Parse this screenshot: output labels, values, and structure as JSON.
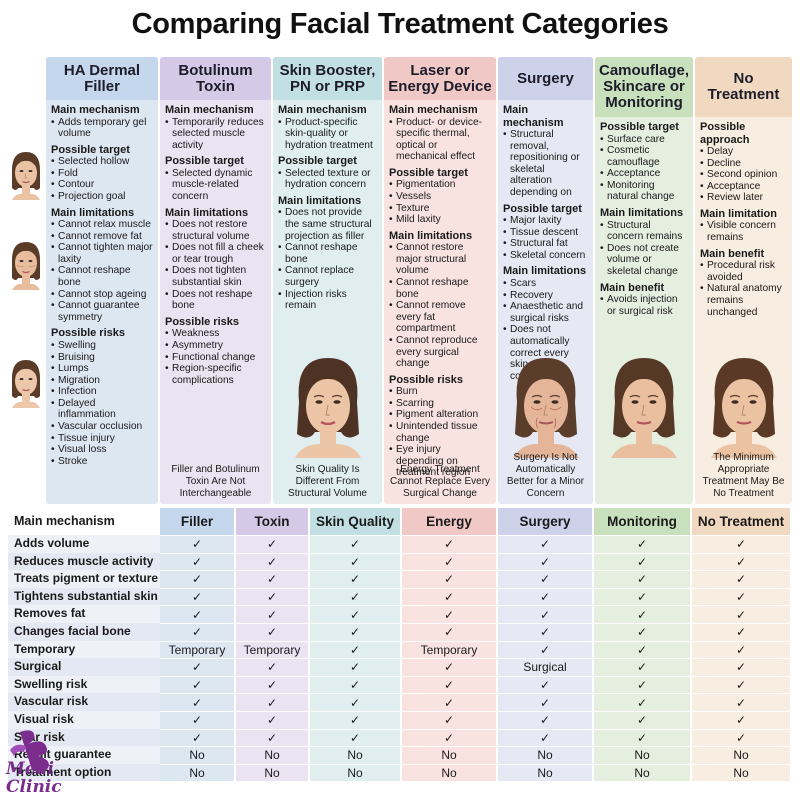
{
  "title": "Comparing Facial Treatment Categories",
  "colors": {
    "filler": "#dde7f2",
    "filler_head": "#c5d7ec",
    "toxin": "#e9e3f2",
    "toxin_head": "#d5c9e8",
    "booster": "#e0eef0",
    "booster_head": "#c2dfe3",
    "energy": "#f8e3e1",
    "energy_head": "#f0c9c6",
    "surgery": "#e6e8f3",
    "surgery_head": "#cdd2ea",
    "camo": "#e5efe0",
    "camo_head": "#c9e0bd",
    "none": "#f8ede1",
    "none_head": "#f0d9c0",
    "logo": "#7b2d8e"
  },
  "columns": [
    {
      "key": "filler",
      "header": "HA Dermal Filler",
      "sections": [
        {
          "title": "Main mechanism",
          "items": [
            "Adds temporary gel volume"
          ]
        },
        {
          "title": "Possible target",
          "items": [
            "Selected hollow",
            "Fold",
            "Contour",
            "Projection goal"
          ]
        },
        {
          "title": "Main limitations",
          "items": [
            "Cannot relax muscle",
            "Cannot remove fat",
            "Cannot tighten major laxity",
            "Cannot reshape bone",
            "Cannot stop ageing",
            "Cannot guarantee symmetry"
          ]
        },
        {
          "title": "Possible risks",
          "items": [
            "Swelling",
            "Bruising",
            "Lumps",
            "Migration",
            "Infection",
            "Delayed inflammation",
            "Vascular occlusion",
            "Tissue injury",
            "Visual loss",
            "Stroke"
          ]
        }
      ],
      "caption": ""
    },
    {
      "key": "toxin",
      "header": "Botulinum Toxin",
      "sections": [
        {
          "title": "Main mechanism",
          "items": [
            "Temporarily reduces selected muscle activity"
          ]
        },
        {
          "title": "Possible target",
          "items": [
            "Selected dynamic muscle-related concern"
          ]
        },
        {
          "title": "Main limitations",
          "items": [
            "Does not restore structural volume",
            "Does not fill a cheek or tear trough",
            "Does not tighten substantial skin",
            "Does not reshape bone"
          ]
        },
        {
          "title": "Possible risks",
          "items": [
            "Weakness",
            "Asymmetry",
            "Functional change",
            "Region-specific complications"
          ]
        }
      ],
      "caption": "Filler and Botulinum Toxin Are Not Interchangeable"
    },
    {
      "key": "booster",
      "header": "Skin Booster, PN or PRP",
      "sections": [
        {
          "title": "Main mechanism",
          "items": [
            "Product-specific skin-quality or hydration treatment"
          ]
        },
        {
          "title": "Possible target",
          "items": [
            "Selected texture or hydration concern"
          ]
        },
        {
          "title": "Main limitations",
          "items": [
            "Does not provide the same structural projection as filler",
            "Cannot reshape bone",
            "Cannot replace surgery",
            "Injection risks remain"
          ]
        }
      ],
      "caption": "Skin Quality Is Different From Structural Volume"
    },
    {
      "key": "energy",
      "header": "Laser or Energy Device",
      "sections": [
        {
          "title": "Main mechanism",
          "items": [
            "Product- or device-specific thermal, optical or mechanical effect"
          ]
        },
        {
          "title": "Possible target",
          "items": [
            "Pigmentation",
            "Vessels",
            "Texture",
            "Mild laxity"
          ]
        },
        {
          "title": "Main limitations",
          "items": [
            "Cannot restore major structural volume",
            "Cannot reshape bone",
            "Cannot remove every fat compartment",
            "Cannot reproduce every surgical change"
          ]
        },
        {
          "title": "Possible risks",
          "items": [
            "Burn",
            "Scarring",
            "Pigment alteration",
            "Unintended tissue change",
            "Eye injury depending on treatment region"
          ]
        }
      ],
      "caption": "Energy Treatment Cannot Replace Every Surgical Change"
    },
    {
      "key": "surgery",
      "header": "Surgery",
      "sections": [
        {
          "title": "Main mechanism",
          "items": [
            "Structural removal, repositioning or skeletal alteration depending on"
          ]
        },
        {
          "title": "Possible target",
          "items": [
            "Major laxity",
            "Tissue descent",
            "Structural fat",
            "Skeletal concern"
          ]
        },
        {
          "title": "Main limitations",
          "items": [
            "Scars",
            "Recovery",
            "Anaesthetic and surgical risks",
            "Does not automatically correct every skin-quality concern"
          ]
        }
      ],
      "caption": "Surgery Is Not Automatically Better for a Minor Concern"
    },
    {
      "key": "camo",
      "header": "Camouflage, Skincare or Monitoring",
      "sections": [
        {
          "title": "Possible target",
          "items": [
            "Surface care",
            "Cosmetic camouflage",
            "Acceptance",
            "Monitoring natural change"
          ]
        },
        {
          "title": "Main limitations",
          "items": [
            "Structural concern remains",
            "Does not create volume or skeletal change"
          ]
        },
        {
          "title": "Main benefit",
          "items": [
            "Avoids injection or surgical risk"
          ]
        }
      ],
      "caption": ""
    },
    {
      "key": "none",
      "header": "No Treatment",
      "sections": [
        {
          "title": "Possible approach",
          "items": [
            "Delay",
            "Decline",
            "Second opinion",
            "Acceptance",
            "Review later"
          ]
        },
        {
          "title": "Main limitation",
          "items": [
            "Visible concern remains"
          ]
        },
        {
          "title": "Main benefit",
          "items": [
            "Procedural risk avoided",
            "Natural anatomy remains unchanged"
          ]
        }
      ],
      "caption": "The Minimum Appropriate Treatment May Be No Treatment"
    }
  ],
  "table": {
    "corner_label": "Main mechanism",
    "headers": [
      "Filler",
      "Toxin",
      "Skin Quality",
      "Energy",
      "Surgery",
      "Monitoring",
      "No Treatment"
    ],
    "rows": [
      {
        "label": "Adds volume",
        "cells": [
          "✓",
          "✓",
          "✓",
          "✓",
          "✓",
          "✓",
          "✓"
        ]
      },
      {
        "label": "Reduces muscle activity",
        "cells": [
          "✓",
          "✓",
          "✓",
          "✓",
          "✓",
          "✓",
          "✓"
        ]
      },
      {
        "label": "Treats pigment or texture",
        "cells": [
          "✓",
          "✓",
          "✓",
          "✓",
          "✓",
          "✓",
          "✓"
        ]
      },
      {
        "label": "Tightens substantial skin",
        "cells": [
          "✓",
          "✓",
          "✓",
          "✓",
          "✓",
          "✓",
          "✓"
        ]
      },
      {
        "label": "Removes fat",
        "cells": [
          "✓",
          "✓",
          "✓",
          "✓",
          "✓",
          "✓",
          "✓"
        ]
      },
      {
        "label": "Changes facial bone",
        "cells": [
          "✓",
          "✓",
          "✓",
          "✓",
          "✓",
          "✓",
          "✓"
        ]
      },
      {
        "label": "Temporary",
        "cells": [
          "Temporary",
          "Temporary",
          "✓",
          "Temporary",
          "✓",
          "✓",
          "✓"
        ]
      },
      {
        "label": "Surgical",
        "cells": [
          "✓",
          "✓",
          "✓",
          "✓",
          "Surgical",
          "✓",
          "✓"
        ]
      },
      {
        "label": "Swelling risk",
        "cells": [
          "✓",
          "✓",
          "✓",
          "✓",
          "✓",
          "✓",
          "✓"
        ]
      },
      {
        "label": "Vascular risk",
        "cells": [
          "✓",
          "✓",
          "✓",
          "✓",
          "✓",
          "✓",
          "✓"
        ]
      },
      {
        "label": "Visual risk",
        "cells": [
          "✓",
          "✓",
          "✓",
          "✓",
          "✓",
          "✓",
          "✓"
        ]
      },
      {
        "label": "Scar risk",
        "cells": [
          "✓",
          "✓",
          "✓",
          "✓",
          "✓",
          "✓",
          "✓"
        ]
      },
      {
        "label": "Result guarantee",
        "cells": [
          "No",
          "No",
          "No",
          "No",
          "No",
          "No",
          "No"
        ]
      },
      {
        "label": "Treatment option",
        "cells": [
          "No",
          "No",
          "No",
          "No",
          "No",
          "No",
          "No"
        ]
      }
    ]
  },
  "logo": {
    "line1": "Medi",
    "line2": "Clinic"
  }
}
